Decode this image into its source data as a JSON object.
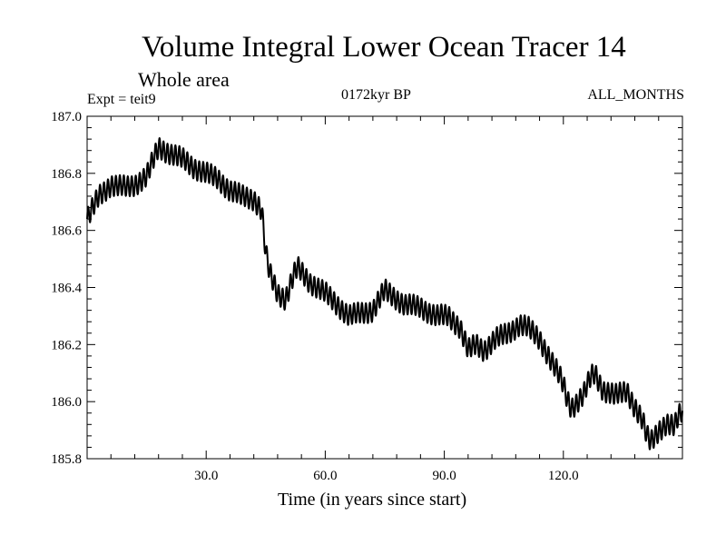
{
  "chart_data": {
    "type": "line",
    "title": "Volume Integral Lower Ocean Tracer 14",
    "subtitle": "Whole area",
    "experiment_label": "Expt = teit9",
    "period_label": "0172kyr BP",
    "months_label": "ALL_MONTHS",
    "xlabel": "Time (in years since start)",
    "ylabel": "",
    "xlim": [
      0,
      150
    ],
    "ylim": [
      185.8,
      187.0
    ],
    "x_ticks": [
      30,
      60,
      90,
      120
    ],
    "x_tick_labels": [
      "30.0",
      "60.0",
      "90.0",
      "120.0"
    ],
    "y_ticks": [
      185.8,
      186.0,
      186.2,
      186.4,
      186.6,
      186.8,
      187.0
    ],
    "y_tick_labels": [
      "185.8",
      "186.0",
      "186.2",
      "186.4",
      "186.6",
      "186.8",
      "187.0"
    ],
    "grid": false,
    "line_color": "#000000",
    "series": [
      {
        "name": "Volume Integral Lower Ocean Tracer 14",
        "oscillation_amplitude": 0.035,
        "oscillation_period_years": 1,
        "x": [
          0,
          3,
          6,
          10,
          12,
          15,
          18,
          21,
          24,
          27,
          30,
          33,
          36,
          39,
          42,
          44,
          45,
          46,
          48,
          50,
          52,
          53,
          56,
          60,
          63,
          66,
          69,
          72,
          75,
          77,
          80,
          84,
          88,
          91,
          94,
          96,
          98,
          100,
          103,
          106,
          109,
          111,
          114,
          117,
          119,
          120,
          121,
          122,
          123,
          125,
          127,
          128,
          130,
          133,
          136,
          138,
          140,
          141,
          142,
          144,
          146,
          148,
          149,
          150
        ],
        "y": [
          186.64,
          186.72,
          186.76,
          186.75,
          186.76,
          186.79,
          186.89,
          186.87,
          186.85,
          186.82,
          186.8,
          186.78,
          186.74,
          186.72,
          186.71,
          186.67,
          186.52,
          186.45,
          186.38,
          186.36,
          186.44,
          186.47,
          186.42,
          186.38,
          186.34,
          186.3,
          186.31,
          186.32,
          186.39,
          186.37,
          186.34,
          186.33,
          186.3,
          186.3,
          186.26,
          186.18,
          186.2,
          186.18,
          186.22,
          186.24,
          186.27,
          186.26,
          186.22,
          186.14,
          186.09,
          186.06,
          186.01,
          185.98,
          185.99,
          186.02,
          186.09,
          186.1,
          186.04,
          186.02,
          186.04,
          185.98,
          185.93,
          185.88,
          185.86,
          185.9,
          185.92,
          185.91,
          185.95,
          185.97
        ]
      }
    ]
  }
}
